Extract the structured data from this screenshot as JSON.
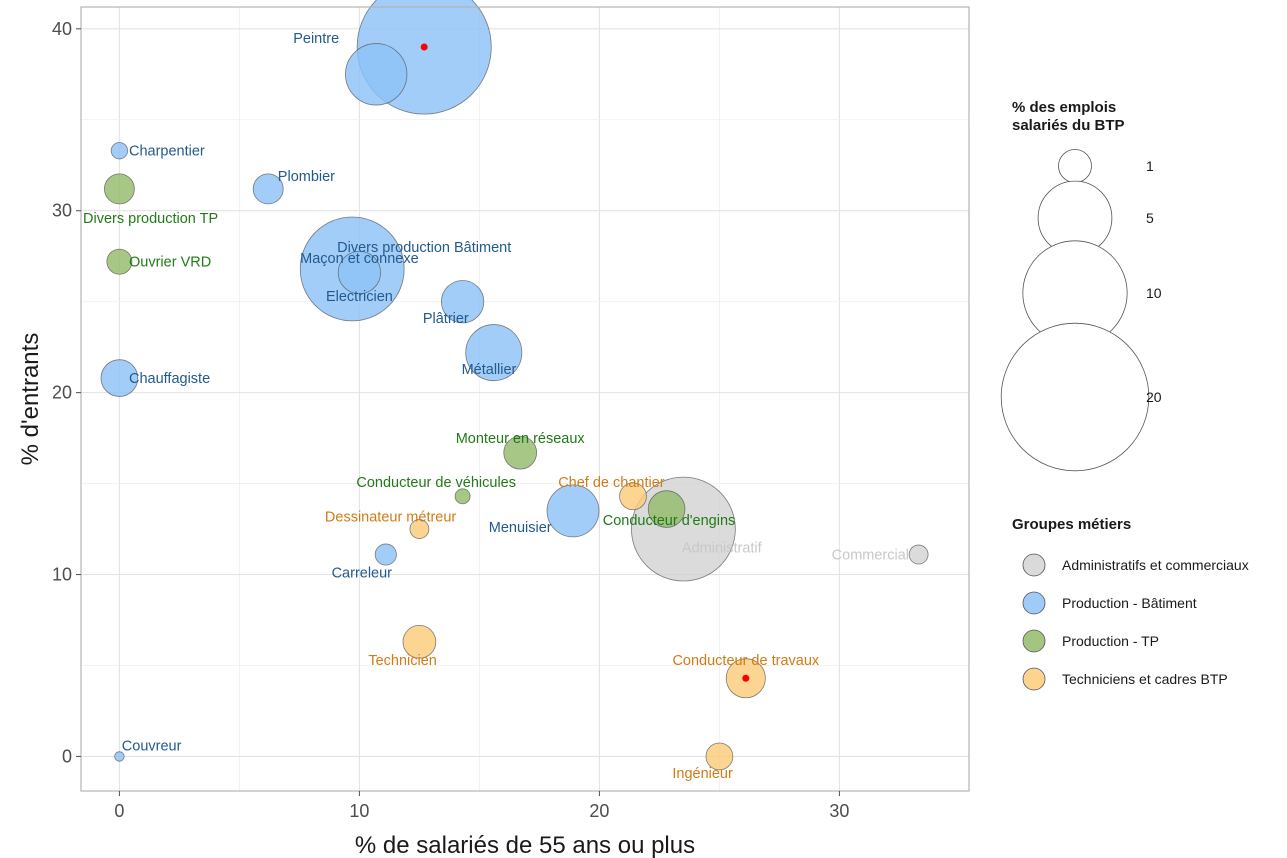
{
  "chart_data": {
    "type": "scatter",
    "xlabel": "% de salariés de 55 ans ou plus",
    "ylabel": "% d'entrants",
    "xlim": [
      -1.6,
      35.4
    ],
    "ylim": [
      -1.9,
      41.2
    ],
    "x_ticks": [
      0,
      10,
      20,
      30
    ],
    "y_ticks": [
      0,
      10,
      20,
      30,
      40
    ],
    "grid": true,
    "size_legend": {
      "title_lines": [
        "% des emplois",
        "salariés du BTP"
      ],
      "values": [
        1,
        5,
        10,
        20
      ]
    },
    "group_legend": {
      "title": "Groupes métiers",
      "items": [
        {
          "name": "Administratifs et commerciaux",
          "fill": "#d3d3d3",
          "text": "#c8c8c8"
        },
        {
          "name": "Production - Bâtiment",
          "fill": "#8dc2f7",
          "text": "#235a8c"
        },
        {
          "name": "Production - TP",
          "fill": "#93bb6a",
          "text": "#217a17"
        },
        {
          "name": "Techniciens et cadres BTP",
          "fill": "#fdcc7a",
          "text": "#d27b15"
        }
      ]
    },
    "points": [
      {
        "label": "Divers production Bâtiment",
        "x": 12.7,
        "y": 39.0,
        "size": 20,
        "group": 1,
        "highlight": true,
        "anchor": "middle",
        "dx": 0,
        "dy": -11
      },
      {
        "label": "Peintre",
        "x": 10.7,
        "y": 37.5,
        "size": 4.2,
        "group": 1,
        "anchor": "middle",
        "dx": -2.5,
        "dy": 2
      },
      {
        "label": "Charpentier",
        "x": 0.0,
        "y": 33.3,
        "size": 0.3,
        "group": 1,
        "anchor": "start",
        "dx": 0.4,
        "dy": 0
      },
      {
        "label": "Plombier",
        "x": 6.2,
        "y": 31.2,
        "size": 1.0,
        "group": 1,
        "anchor": "start",
        "dx": 0.4,
        "dy": 0.7
      },
      {
        "label": "Divers production TP",
        "x": 0.0,
        "y": 31.2,
        "size": 1.0,
        "group": 2,
        "anchor": "middle",
        "dx": 1.3,
        "dy": -1.6
      },
      {
        "label": "Maçon et connexe",
        "x": 9.7,
        "y": 26.8,
        "size": 12,
        "group": 1,
        "anchor": "middle",
        "dx": 0.3,
        "dy": 0.6
      },
      {
        "label": "Electricien",
        "x": 10.0,
        "y": 26.6,
        "size": 2.0,
        "group": 1,
        "anchor": "middle",
        "dx": 0,
        "dy": -1.3
      },
      {
        "label": "Ouvrier VRD",
        "x": 0.0,
        "y": 27.2,
        "size": 0.7,
        "group": 2,
        "anchor": "start",
        "dx": 0.4,
        "dy": 0
      },
      {
        "label": "Plâtrier",
        "x": 14.3,
        "y": 25.0,
        "size": 2.0,
        "group": 1,
        "anchor": "middle",
        "dx": -0.7,
        "dy": -0.9
      },
      {
        "label": "Métallier",
        "x": 15.6,
        "y": 22.2,
        "size": 3.5,
        "group": 1,
        "anchor": "middle",
        "dx": -0.2,
        "dy": -0.9
      },
      {
        "label": "Chauffagiste",
        "x": 0.0,
        "y": 20.8,
        "size": 1.5,
        "group": 1,
        "anchor": "start",
        "dx": 0.4,
        "dy": 0
      },
      {
        "label": "Monteur en réseaux",
        "x": 16.7,
        "y": 16.7,
        "size": 1.2,
        "group": 2,
        "anchor": "middle",
        "dx": 0,
        "dy": 0.8
      },
      {
        "label": "Conducteur de véhicules",
        "x": 14.3,
        "y": 14.3,
        "size": 0.25,
        "group": 2,
        "anchor": "middle",
        "dx": -1.1,
        "dy": 0.8
      },
      {
        "label": "Chef de chantier",
        "x": 21.4,
        "y": 14.3,
        "size": 0.8,
        "group": 3,
        "anchor": "middle",
        "dx": -0.9,
        "dy": 0.8
      },
      {
        "label": "Conducteur d'engins",
        "x": 22.8,
        "y": 13.6,
        "size": 1.5,
        "group": 2,
        "anchor": "middle",
        "dx": 0.1,
        "dy": -0.6
      },
      {
        "label": "Menuisier",
        "x": 18.9,
        "y": 13.5,
        "size": 3.0,
        "group": 1,
        "anchor": "middle",
        "dx": -2.2,
        "dy": -0.9
      },
      {
        "label": "Administratif",
        "x": 23.5,
        "y": 12.5,
        "size": 12,
        "group": 0,
        "anchor": "middle",
        "dx": 1.6,
        "dy": -1.0
      },
      {
        "label": "Dessinateur métreur",
        "x": 12.5,
        "y": 12.5,
        "size": 0.4,
        "group": 3,
        "anchor": "middle",
        "dx": -1.2,
        "dy": 0.7
      },
      {
        "label": "Commercial",
        "x": 33.3,
        "y": 11.1,
        "size": 0.4,
        "group": 0,
        "anchor": "end",
        "dx": -0.4,
        "dy": 0
      },
      {
        "label": "Carreleur",
        "x": 11.1,
        "y": 11.1,
        "size": 0.5,
        "group": 1,
        "anchor": "middle",
        "dx": -1.0,
        "dy": -1.0
      },
      {
        "label": "Technicien",
        "x": 12.5,
        "y": 6.3,
        "size": 1.2,
        "group": 3,
        "anchor": "middle",
        "dx": -0.7,
        "dy": -1.0
      },
      {
        "label": "Conducteur de travaux",
        "x": 26.1,
        "y": 4.3,
        "size": 1.7,
        "group": 3,
        "highlight": true,
        "anchor": "middle",
        "dx": 0,
        "dy": 1.0
      },
      {
        "label": "Couvreur",
        "x": 0.0,
        "y": 0.0,
        "size": 0.1,
        "group": 1,
        "anchor": "start",
        "dx": 0.1,
        "dy": 0.6
      },
      {
        "label": "Ingénieur",
        "x": 25.0,
        "y": 0.0,
        "size": 0.8,
        "group": 3,
        "anchor": "middle",
        "dx": -0.7,
        "dy": -0.9
      }
    ]
  }
}
